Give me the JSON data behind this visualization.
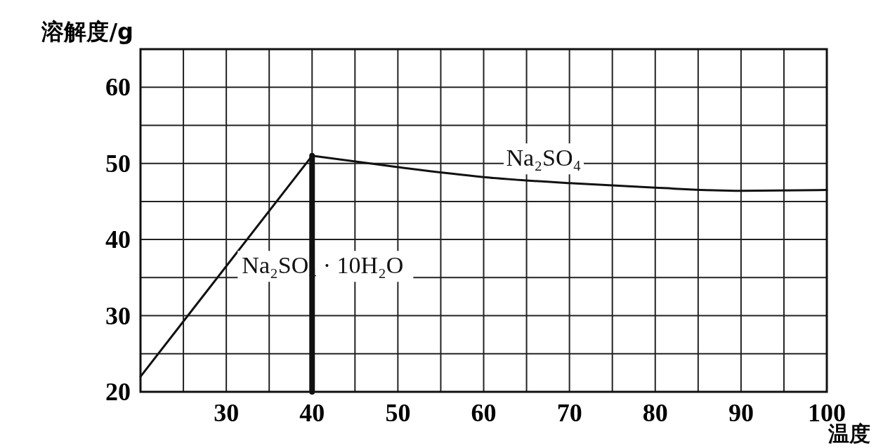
{
  "chart_data": {
    "type": "line",
    "xlabel": "温度",
    "ylabel": "溶解度/g",
    "xlim": [
      20,
      100
    ],
    "ylim": [
      20,
      65
    ],
    "xticks": [
      {
        "value": 20,
        "label": null
      },
      {
        "value": 25,
        "label": null
      },
      30,
      {
        "value": 35,
        "label": null
      },
      40,
      {
        "value": 45,
        "label": null
      },
      50,
      {
        "value": 55,
        "label": null
      },
      60,
      {
        "value": 65,
        "label": null
      },
      70,
      {
        "value": 75,
        "label": null
      },
      80,
      {
        "value": 85,
        "label": null
      },
      90,
      {
        "value": 95,
        "label": null
      },
      100
    ],
    "yticks": [
      20,
      {
        "value": 25,
        "label": null
      },
      30,
      {
        "value": 35,
        "label": null
      },
      40,
      {
        "value": 45,
        "label": null
      },
      50,
      {
        "value": 55,
        "label": null
      },
      60,
      {
        "value": 65,
        "label": null
      }
    ],
    "grid": true,
    "series": [
      {
        "name": "Na₂SO₄ · 10H₂O",
        "color": "#111111",
        "x": [
          20,
          40
        ],
        "values": [
          22,
          51
        ]
      },
      {
        "name": "Na₂SO₄",
        "color": "#111111",
        "x": [
          40,
          50,
          60,
          70,
          80,
          90,
          100
        ],
        "values": [
          51,
          49.5,
          48.2,
          47.4,
          46.8,
          46.4,
          46.5
        ]
      },
      {
        "color": "#111111",
        "x": [
          40,
          40
        ],
        "values": [
          20,
          51
        ]
      }
    ]
  }
}
